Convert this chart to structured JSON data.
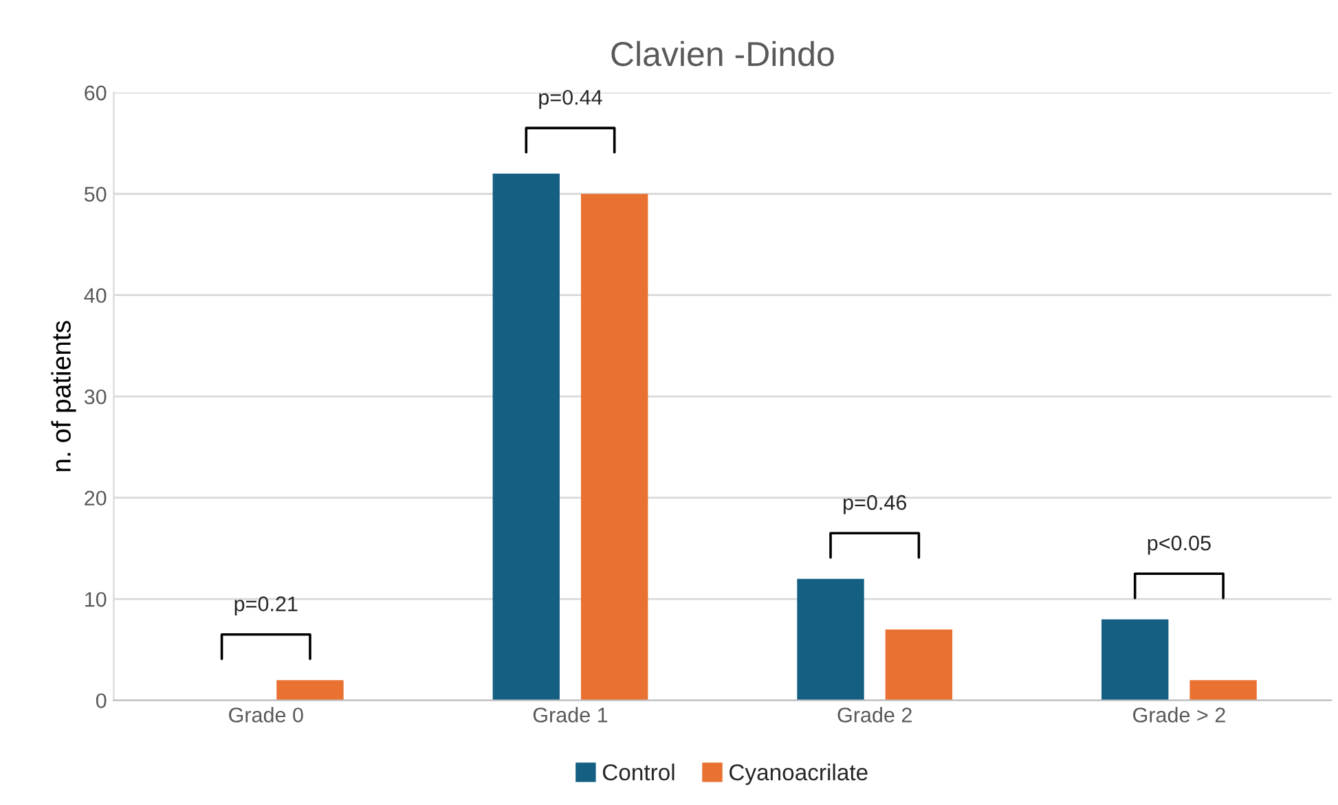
{
  "chart_data": {
    "type": "bar",
    "title": "Clavien -Dindo",
    "ylabel": "n. of patients",
    "categories": [
      "Grade 0",
      "Grade 1",
      "Grade 2",
      "Grade > 2"
    ],
    "series": [
      {
        "name": "Control",
        "color": "#156082",
        "values": [
          0,
          52,
          12,
          8
        ]
      },
      {
        "name": "Cyanoacrilate",
        "color": "#e97132",
        "values": [
          2,
          50,
          7,
          2
        ]
      }
    ],
    "ylim": [
      0,
      60
    ],
    "yticks": [
      0,
      10,
      20,
      30,
      40,
      50,
      60
    ],
    "grid": "y",
    "legend": "bottom",
    "annotations": [
      "p=0.21",
      "p=0.44",
      "p=0.46",
      "p<0.05"
    ]
  }
}
